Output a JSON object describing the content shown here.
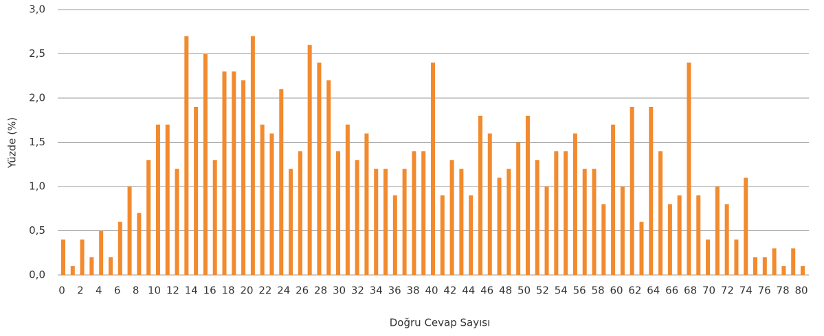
{
  "chart_data": {
    "type": "bar",
    "x_label": "Doğru Cevap Sayısı",
    "y_label": "Yüzde (%)",
    "color": "#f28a2e",
    "grid": true,
    "categories": [
      null,
      null,
      null,
      null,
      null,
      null,
      null,
      null,
      null,
      null,
      null,
      null,
      null,
      null,
      null,
      null,
      null,
      null,
      null,
      null,
      null,
      null,
      null,
      null,
      null,
      null,
      null,
      null,
      null,
      null,
      null,
      null,
      null,
      null,
      null,
      null,
      null,
      null,
      null,
      null,
      null,
      null,
      null,
      null,
      null,
      null,
      null,
      null,
      null,
      null,
      null,
      null,
      null,
      null,
      null,
      null,
      null,
      null,
      null,
      null,
      null,
      null,
      null,
      null,
      null,
      null,
      null,
      null,
      null,
      null,
      null,
      null,
      null,
      null,
      null,
      null,
      null,
      null,
      null
    ],
    "values": [
      0.4,
      0.1,
      0.4,
      0.2,
      0.5,
      0.2,
      0.6,
      1.0,
      0.7,
      1.3,
      1.7,
      1.7,
      1.2,
      2.7,
      1.9,
      2.5,
      1.3,
      2.3,
      2.3,
      2.2,
      2.7,
      1.7,
      1.6,
      2.1,
      1.2,
      1.4,
      2.6,
      2.4,
      2.2,
      1.4,
      1.7,
      1.3,
      1.6,
      1.2,
      1.2,
      0.9,
      1.2,
      1.4,
      1.4,
      2.4,
      0.9,
      1.3,
      1.2,
      0.9,
      1.8,
      1.6,
      1.1,
      1.2,
      1.5,
      1.8,
      1.3,
      1.0,
      1.4,
      1.4,
      1.6,
      1.2,
      1.2,
      0.8,
      1.7,
      1.0,
      1.9,
      0.6,
      1.9,
      1.4,
      0.8,
      0.9,
      2.4,
      0.9,
      0.4,
      1.0,
      0.8,
      0.4,
      1.1,
      0.2,
      0.2,
      0.3,
      0.1,
      0.3,
      0.1
    ],
    "xlim": [
      0,
      80
    ],
    "xticks": [
      0,
      2,
      4,
      6,
      8,
      10,
      12,
      14,
      16,
      18,
      20,
      22,
      24,
      26,
      28,
      30,
      32,
      34,
      36,
      38,
      40,
      42,
      44,
      46,
      48,
      50,
      52,
      54,
      56,
      58,
      60,
      62,
      64,
      66,
      68,
      70,
      72,
      74,
      76,
      78,
      80
    ],
    "ylim": [
      0,
      3
    ],
    "yticks": [
      {
        "value": 0,
        "label": "0,0"
      },
      {
        "value": 0.5,
        "label": "0,5"
      },
      {
        "value": 1,
        "label": "1,0"
      },
      {
        "value": 1.5,
        "label": "1,5"
      },
      {
        "value": 2,
        "label": "2,0"
      },
      {
        "value": 2.5,
        "label": "2,5"
      },
      {
        "value": 3,
        "label": "3,0"
      }
    ]
  }
}
